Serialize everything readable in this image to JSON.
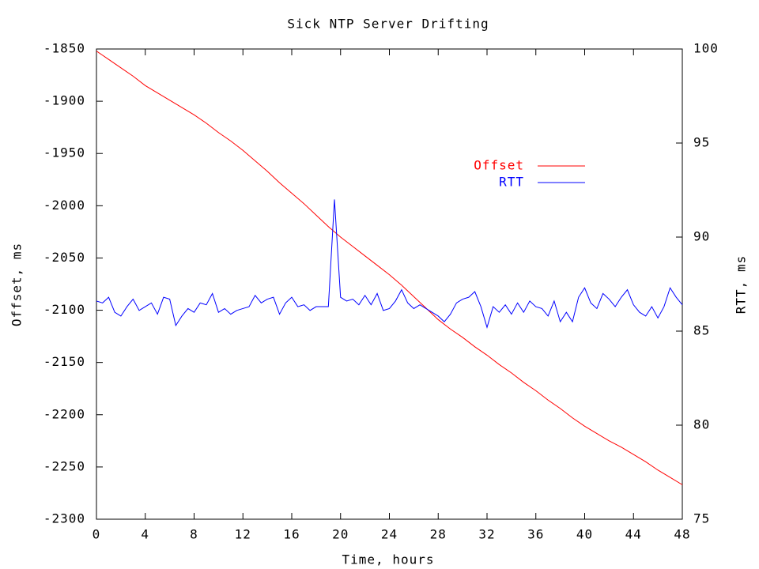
{
  "chart_data": {
    "type": "line",
    "title": "Sick NTP Server Drifting",
    "xlabel": "Time, hours",
    "ylabel": "Offset, ms",
    "y2label": "RTT, ms",
    "xlim": [
      0,
      48
    ],
    "xticks": [
      0,
      4,
      8,
      12,
      16,
      20,
      24,
      28,
      32,
      36,
      40,
      44,
      48
    ],
    "ylim": [
      -2300,
      -1850
    ],
    "yticks": [
      -2300,
      -2250,
      -2200,
      -2150,
      -2100,
      -2050,
      -2000,
      -1950,
      -1900,
      -1850
    ],
    "y2lim": [
      75,
      100
    ],
    "y2ticks": [
      75,
      80,
      85,
      90,
      95,
      100
    ],
    "grid": false,
    "legend": "upper right",
    "series": [
      {
        "name": "Offset",
        "color": "#ff0000",
        "axis": "y",
        "x": [
          0,
          1,
          2,
          3,
          4,
          5,
          6,
          7,
          8,
          9,
          10,
          11,
          12,
          13,
          14,
          15,
          16,
          17,
          18,
          19,
          20,
          21,
          22,
          23,
          24,
          25,
          26,
          27,
          28,
          29,
          30,
          31,
          32,
          33,
          34,
          35,
          36,
          37,
          38,
          39,
          40,
          41,
          42,
          43,
          44,
          45,
          46,
          47,
          48
        ],
        "values": [
          -1852,
          -1860,
          -1868,
          -1876,
          -1885,
          -1892,
          -1899,
          -1906,
          -1913,
          -1921,
          -1930,
          -1938,
          -1947,
          -1957,
          -1967,
          -1978,
          -1988,
          -1998,
          -2009,
          -2020,
          -2030,
          -2039,
          -2048,
          -2057,
          -2066,
          -2076,
          -2087,
          -2098,
          -2109,
          -2118,
          -2126,
          -2135,
          -2143,
          -2152,
          -2160,
          -2169,
          -2177,
          -2186,
          -2194,
          -2203,
          -2211,
          -2218,
          -2225,
          -2231,
          -2238,
          -2245,
          -2253,
          -2260,
          -2267
        ]
      },
      {
        "name": "RTT",
        "color": "#0000ff",
        "axis": "y2",
        "x": [
          0,
          0.5,
          1,
          1.5,
          2,
          2.5,
          3,
          3.5,
          4,
          4.5,
          5,
          5.5,
          6,
          6.5,
          7,
          7.5,
          8,
          8.5,
          9,
          9.5,
          10,
          10.5,
          11,
          11.5,
          12,
          12.5,
          13,
          13.5,
          14,
          14.5,
          15,
          15.5,
          16,
          16.5,
          17,
          17.5,
          18,
          18.5,
          19,
          19.5,
          20,
          20.5,
          21,
          21.5,
          22,
          22.5,
          23,
          23.5,
          24,
          24.5,
          25,
          25.5,
          26,
          26.5,
          27,
          27.5,
          28,
          28.5,
          29,
          29.5,
          30,
          30.5,
          31,
          31.5,
          32,
          32.5,
          33,
          33.5,
          34,
          34.5,
          35,
          35.5,
          36,
          36.5,
          37,
          37.5,
          38,
          38.5,
          39,
          39.5,
          40,
          40.5,
          41,
          41.5,
          42,
          42.5,
          43,
          43.5,
          44,
          44.5,
          45,
          45.5,
          46,
          46.5,
          47,
          47.5,
          48
        ],
        "values": [
          86.6,
          86.5,
          86.8,
          86.0,
          85.8,
          86.3,
          86.7,
          86.1,
          86.3,
          86.5,
          85.9,
          86.8,
          86.7,
          85.3,
          85.8,
          86.2,
          86.0,
          86.5,
          86.4,
          87.0,
          86.0,
          86.2,
          85.9,
          86.1,
          86.2,
          86.3,
          86.9,
          86.5,
          86.7,
          86.8,
          85.9,
          86.5,
          86.8,
          86.3,
          86.4,
          86.1,
          86.3,
          86.3,
          86.3,
          92.0,
          86.8,
          86.6,
          86.7,
          86.4,
          86.9,
          86.4,
          87.0,
          86.1,
          86.2,
          86.6,
          87.2,
          86.5,
          86.2,
          86.4,
          86.2,
          86.0,
          85.8,
          85.5,
          85.9,
          86.5,
          86.7,
          86.8,
          87.1,
          86.3,
          85.2,
          86.3,
          86.0,
          86.4,
          85.9,
          86.5,
          86.0,
          86.6,
          86.3,
          86.2,
          85.8,
          86.6,
          85.5,
          86.0,
          85.5,
          86.8,
          87.3,
          86.5,
          86.2,
          87.0,
          86.7,
          86.3,
          86.8,
          87.2,
          86.4,
          86.0,
          85.8,
          86.3,
          85.7,
          86.3,
          87.3,
          86.8,
          86.4
        ]
      }
    ]
  }
}
